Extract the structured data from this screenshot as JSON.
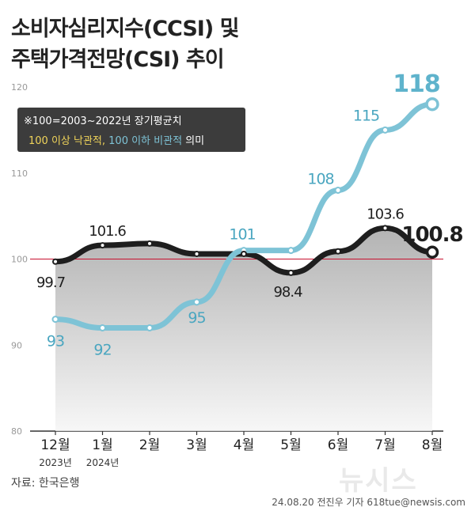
{
  "title": {
    "line1": "소비자심리지수(CCSI) 및",
    "line2": "주택가격전망(CSI) 추이"
  },
  "chart_data": {
    "type": "line",
    "categories": [
      "12월",
      "1월",
      "2월",
      "3월",
      "4월",
      "5월",
      "6월",
      "7월",
      "8월"
    ],
    "year_labels": [
      "2023년",
      "2024년",
      "",
      "",
      "",
      "",
      "",
      "",
      ""
    ],
    "ylim": [
      80,
      120
    ],
    "y_ticks": [
      "80",
      "90",
      "100",
      "110",
      "120"
    ],
    "reference_line": 100,
    "grid": false,
    "series": [
      {
        "name": "소비자심리지수(CCSI)",
        "color": "#1e1e1e",
        "values": [
          99.7,
          101.6,
          101.8,
          100.6,
          100.6,
          98.4,
          100.9,
          103.6,
          100.8
        ],
        "labels": [
          "99.7",
          "101.6",
          "",
          "",
          "",
          "98.4",
          "",
          "103.6",
          "100.8"
        ]
      },
      {
        "name": "주택가격전망(CSI)",
        "color": "#7ec3d6",
        "values": [
          93,
          92,
          92,
          95,
          101,
          101,
          108,
          115,
          118
        ],
        "labels": [
          "93",
          "92",
          "",
          "95",
          "101",
          "",
          "108",
          "115",
          "118"
        ]
      }
    ],
    "legend": {
      "note": "※100=2003~2022년 장기평균치",
      "optimistic": "100 이상 낙관적,",
      "pessimistic": "100 이하 비관적",
      "suffix": "의미",
      "optimistic_color": "#f0d45a",
      "pessimistic_color": "#7ec3d6"
    }
  },
  "source": "자료: 한국은행",
  "byline": "24.08.20 전진우 기자 618tue@newsis.com",
  "watermark": "뉴시스"
}
